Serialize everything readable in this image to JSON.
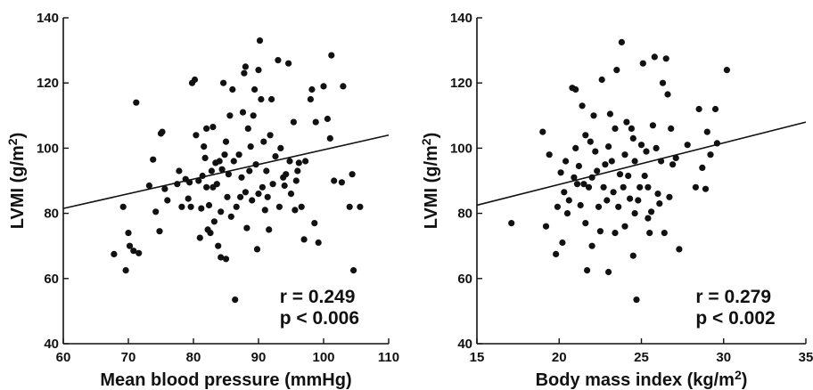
{
  "chart_data": [
    {
      "type": "scatter",
      "xlabel": "Mean blood pressure (mmHg)",
      "ylabel": "LVMI (g/m",
      "ylabel_sup": "2",
      "ylabel_end": ")",
      "xlim": [
        60,
        110
      ],
      "ylim": [
        40,
        140
      ],
      "xticks": [
        60,
        70,
        80,
        90,
        100,
        110
      ],
      "yticks": [
        40,
        60,
        80,
        100,
        120,
        140
      ],
      "annotations": [
        "r = 0.249",
        "p < 0.006"
      ],
      "regression": {
        "x": [
          60,
          110
        ],
        "y": [
          81.5,
          104
        ]
      },
      "points": [
        [
          67.8,
          67.5
        ],
        [
          69.2,
          82
        ],
        [
          69.6,
          62.5
        ],
        [
          70,
          74
        ],
        [
          70.2,
          70
        ],
        [
          70.8,
          68.5
        ],
        [
          71.2,
          114
        ],
        [
          71.6,
          67.8
        ],
        [
          73.2,
          88.5
        ],
        [
          73.8,
          96.5
        ],
        [
          74.2,
          80.5
        ],
        [
          74.8,
          74.5
        ],
        [
          75,
          104.5
        ],
        [
          75.2,
          105
        ],
        [
          75.6,
          87.5
        ],
        [
          76,
          84
        ],
        [
          77.5,
          89
        ],
        [
          77.8,
          93
        ],
        [
          78.2,
          82
        ],
        [
          78.8,
          90.5
        ],
        [
          79.2,
          84.5
        ],
        [
          79.4,
          89.5
        ],
        [
          79.6,
          82
        ],
        [
          79.8,
          120
        ],
        [
          80.2,
          121
        ],
        [
          80.4,
          104
        ],
        [
          80.8,
          90
        ],
        [
          81,
          72.5
        ],
        [
          81.2,
          81.5
        ],
        [
          81.4,
          91.5
        ],
        [
          81.6,
          100.5
        ],
        [
          81.8,
          97
        ],
        [
          82,
          106
        ],
        [
          82,
          88
        ],
        [
          82.2,
          75
        ],
        [
          82.4,
          82.5
        ],
        [
          82.6,
          74
        ],
        [
          82.8,
          93
        ],
        [
          83,
          106.5
        ],
        [
          83,
          88
        ],
        [
          83.2,
          77.5
        ],
        [
          83.4,
          95.5
        ],
        [
          83.6,
          89
        ],
        [
          83.8,
          70
        ],
        [
          84,
          96
        ],
        [
          84.2,
          80.5
        ],
        [
          84.2,
          66.5
        ],
        [
          84.4,
          93.5
        ],
        [
          84.6,
          120
        ],
        [
          84.8,
          98
        ],
        [
          85,
          66
        ],
        [
          85,
          102
        ],
        [
          85.2,
          85
        ],
        [
          85.4,
          92
        ],
        [
          85.6,
          110
        ],
        [
          85.8,
          79
        ],
        [
          86,
          118
        ],
        [
          86.2,
          96
        ],
        [
          86.4,
          53.5
        ],
        [
          86.6,
          82
        ],
        [
          87,
          98
        ],
        [
          87.2,
          85
        ],
        [
          87.4,
          91
        ],
        [
          87.6,
          111
        ],
        [
          87.8,
          123
        ],
        [
          88,
          125
        ],
        [
          88,
          86.5
        ],
        [
          88.2,
          75.5
        ],
        [
          88.4,
          106
        ],
        [
          88.6,
          93
        ],
        [
          88.8,
          100.5
        ],
        [
          89,
          84
        ],
        [
          89.2,
          110
        ],
        [
          89.4,
          118
        ],
        [
          89.6,
          95
        ],
        [
          89.8,
          69
        ],
        [
          90,
          124
        ],
        [
          90,
          86
        ],
        [
          90.2,
          133
        ],
        [
          90.4,
          115
        ],
        [
          90.6,
          88
        ],
        [
          90.8,
          102
        ],
        [
          91,
          81
        ],
        [
          91.2,
          93
        ],
        [
          91.4,
          85
        ],
        [
          91.6,
          75
        ],
        [
          91.8,
          104
        ],
        [
          92,
          115
        ],
        [
          92.2,
          89
        ],
        [
          92.6,
          97.5
        ],
        [
          93,
          127
        ],
        [
          93.2,
          82
        ],
        [
          93.4,
          100
        ],
        [
          93.8,
          91
        ],
        [
          94,
          88.5
        ],
        [
          94.2,
          92
        ],
        [
          94.6,
          126
        ],
        [
          94.8,
          96
        ],
        [
          95,
          86
        ],
        [
          95.4,
          108
        ],
        [
          95.6,
          81
        ],
        [
          95.8,
          90
        ],
        [
          96,
          93
        ],
        [
          96.2,
          95.5
        ],
        [
          96.6,
          82
        ],
        [
          97,
          72
        ],
        [
          97.2,
          96
        ],
        [
          98,
          115
        ],
        [
          98.2,
          118
        ],
        [
          98.6,
          77
        ],
        [
          98.8,
          108
        ],
        [
          99.2,
          71
        ],
        [
          100,
          119
        ],
        [
          100.6,
          109
        ],
        [
          101,
          103
        ],
        [
          101.2,
          128.5
        ],
        [
          101.6,
          90
        ],
        [
          102.8,
          89.5
        ],
        [
          103,
          119
        ],
        [
          104,
          82
        ],
        [
          104.4,
          92
        ],
        [
          104.6,
          62.5
        ],
        [
          105.6,
          82
        ]
      ]
    },
    {
      "type": "scatter",
      "xlabel": "Body mass index (kg/m",
      "xlabel_sup": "2",
      "xlabel_end": ")",
      "ylabel": "LVMI (g/m",
      "ylabel_sup": "2",
      "ylabel_end": ")",
      "xlim": [
        15,
        35
      ],
      "ylim": [
        40,
        140
      ],
      "xticks": [
        15,
        20,
        25,
        30,
        35
      ],
      "yticks": [
        40,
        60,
        80,
        100,
        120,
        140
      ],
      "annotations": [
        "r = 0.279",
        "p < 0.002"
      ],
      "regression": {
        "x": [
          15,
          35
        ],
        "y": [
          82.5,
          108
        ]
      },
      "points": [
        [
          17.1,
          77
        ],
        [
          19,
          105
        ],
        [
          19.2,
          76
        ],
        [
          19.4,
          98
        ],
        [
          19.8,
          67.5
        ],
        [
          19.9,
          82
        ],
        [
          20.1,
          92.5
        ],
        [
          20.2,
          71
        ],
        [
          20.3,
          86.5
        ],
        [
          20.4,
          96
        ],
        [
          20.5,
          80
        ],
        [
          20.6,
          84
        ],
        [
          20.8,
          118.5
        ],
        [
          20.9,
          91
        ],
        [
          21,
          118
        ],
        [
          21,
          100
        ],
        [
          21.1,
          89
        ],
        [
          21.2,
          94.5
        ],
        [
          21.3,
          82.5
        ],
        [
          21.4,
          113
        ],
        [
          21.5,
          89
        ],
        [
          21.6,
          104
        ],
        [
          21.6,
          77
        ],
        [
          21.7,
          62.5
        ],
        [
          21.8,
          88
        ],
        [
          21.9,
          102
        ],
        [
          22,
          70
        ],
        [
          22,
          91
        ],
        [
          22.1,
          110
        ],
        [
          22.2,
          99
        ],
        [
          22.3,
          93
        ],
        [
          22.4,
          82
        ],
        [
          22.5,
          74.5
        ],
        [
          22.6,
          121
        ],
        [
          22.7,
          88
        ],
        [
          22.8,
          95
        ],
        [
          22.9,
          84
        ],
        [
          23,
          62
        ],
        [
          23,
          100.5
        ],
        [
          23.1,
          110.5
        ],
        [
          23.2,
          96
        ],
        [
          23.3,
          86.5
        ],
        [
          23.4,
          74
        ],
        [
          23.4,
          106
        ],
        [
          23.5,
          124
        ],
        [
          23.6,
          82
        ],
        [
          23.7,
          92
        ],
        [
          23.8,
          132.5
        ],
        [
          23.9,
          88
        ],
        [
          24,
          98
        ],
        [
          24,
          76
        ],
        [
          24.1,
          108
        ],
        [
          24.2,
          91.5
        ],
        [
          24.3,
          84.5
        ],
        [
          24.4,
          106
        ],
        [
          24.5,
          103
        ],
        [
          24.5,
          67
        ],
        [
          24.6,
          80
        ],
        [
          24.6,
          96
        ],
        [
          24.7,
          53.5
        ],
        [
          24.8,
          84
        ],
        [
          24.9,
          88
        ],
        [
          25,
          101
        ],
        [
          25.1,
          126
        ],
        [
          25.2,
          91.5
        ],
        [
          25.3,
          99
        ],
        [
          25.4,
          88
        ],
        [
          25.4,
          78.5
        ],
        [
          25.5,
          74
        ],
        [
          25.6,
          80.5
        ],
        [
          25.7,
          107
        ],
        [
          25.8,
          128
        ],
        [
          25.9,
          100
        ],
        [
          26,
          86
        ],
        [
          26.1,
          83
        ],
        [
          26.2,
          96
        ],
        [
          26.3,
          120
        ],
        [
          26.4,
          74
        ],
        [
          26.5,
          127.5
        ],
        [
          26.6,
          116.5
        ],
        [
          26.7,
          85
        ],
        [
          26.8,
          106
        ],
        [
          26.9,
          95
        ],
        [
          27.1,
          97
        ],
        [
          27.3,
          69
        ],
        [
          27.8,
          101
        ],
        [
          28.3,
          88
        ],
        [
          28.5,
          112
        ],
        [
          28.7,
          94
        ],
        [
          28.9,
          87.5
        ],
        [
          29,
          105
        ],
        [
          29.2,
          98
        ],
        [
          29.5,
          112
        ],
        [
          29.6,
          101.5
        ],
        [
          30.2,
          124
        ]
      ]
    }
  ]
}
